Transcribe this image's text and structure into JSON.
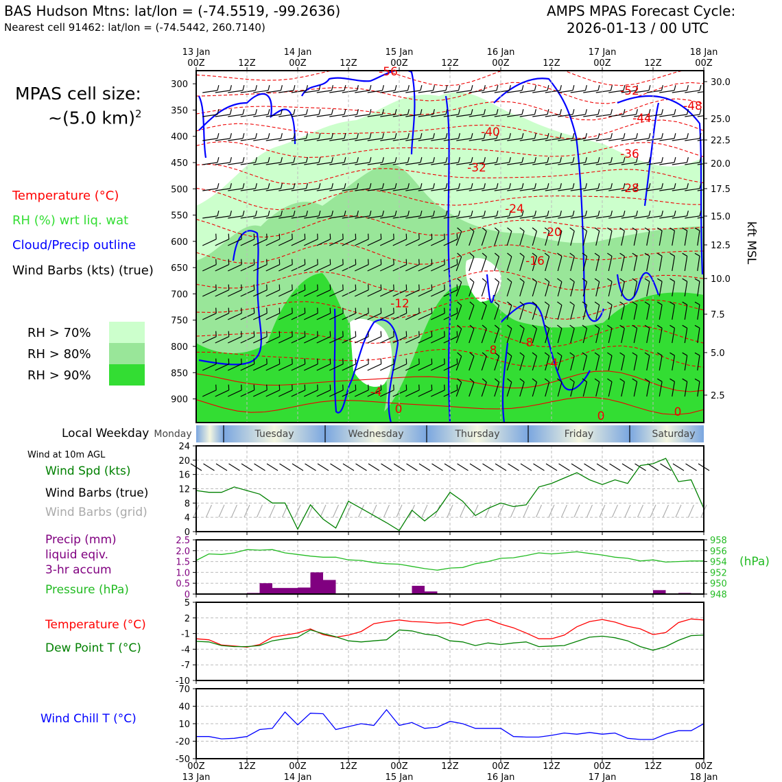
{
  "header": {
    "station_line": "BAS Hudson Mtns: lat/lon = (-74.5519, -99.2636)",
    "cell_line": "Nearest cell 91462: lat/lon = (-74.5442, 260.7140)",
    "model_line": "AMPS MPAS Forecast Cycle:",
    "cycle_line": "2026-01-13 / 00 UTC"
  },
  "cell_size": {
    "line1": "MPAS cell size:",
    "line2": "~(5.0 km)",
    "exponent": "2"
  },
  "legend": {
    "temperature": {
      "label": "Temperature (°C)",
      "color": "#ff0000"
    },
    "rh": {
      "label": "RH (%) wrt liq. wat",
      "color": "#33dd33"
    },
    "cloud": {
      "label": "Cloud/Precip outline",
      "color": "#0000ff"
    },
    "wind": {
      "label": "Wind Barbs (kts) (true)",
      "color": "#000000"
    },
    "rh_levels": [
      {
        "label": "RH > 70%",
        "color": "#ccffcc"
      },
      {
        "label": "RH > 80%",
        "color": "#99e699"
      },
      {
        "label": "RH > 90%",
        "color": "#33dd33"
      }
    ]
  },
  "weekday": {
    "title": "Local Weekday",
    "days": [
      "Monday",
      "Tuesday",
      "Wednesday",
      "Thursday",
      "Friday",
      "Saturday"
    ]
  },
  "time_axis": {
    "ticks": [
      {
        "top": "13 Jan",
        "bottom": "00Z"
      },
      {
        "top": "",
        "bottom": "12Z"
      },
      {
        "top": "14 Jan",
        "bottom": "00Z"
      },
      {
        "top": "",
        "bottom": "12Z"
      },
      {
        "top": "15 Jan",
        "bottom": "00Z"
      },
      {
        "top": "",
        "bottom": "12Z"
      },
      {
        "top": "16 Jan",
        "bottom": "00Z"
      },
      {
        "top": "",
        "bottom": "12Z"
      },
      {
        "top": "17 Jan",
        "bottom": "00Z"
      },
      {
        "top": "",
        "bottom": "12Z"
      },
      {
        "top": "18 Jan",
        "bottom": "00Z"
      }
    ]
  },
  "chart_data": [
    {
      "type": "heatmap",
      "name": "vertical cross-section",
      "x_hours": [
        0,
        120
      ],
      "y_pressure_ticks": [
        300,
        350,
        400,
        450,
        500,
        550,
        600,
        650,
        700,
        750,
        800,
        850,
        900
      ],
      "y_pressure_range": [
        275,
        945
      ],
      "right_axis_kft": [
        30.0,
        25.0,
        22.5,
        20.0,
        17.5,
        15.0,
        12.5,
        10.0,
        7.5,
        5.0,
        2.5
      ],
      "right_axis_label": "kft MSL",
      "temperature_contour_labels": [
        "-56",
        "-52",
        "-48",
        "-44",
        "-40",
        "-36",
        "-32",
        "-28",
        "-24",
        "-20",
        "-16",
        "-12",
        "-8",
        "-8",
        "-4",
        "-4",
        "0",
        "0",
        "0"
      ]
    },
    {
      "type": "line",
      "name": "10m wind",
      "title": "Wind at 10m AGL",
      "labels": {
        "speed": "Wind Spd (kts)",
        "barbs_true": "Wind Barbs (true)",
        "barbs_grid": "Wind Barbs (grid)"
      },
      "ylim": [
        0,
        24
      ],
      "yticks": [
        0,
        4,
        8,
        12,
        16,
        20,
        24
      ],
      "x_hours": [
        0,
        3,
        6,
        9,
        12,
        15,
        18,
        21,
        24,
        27,
        30,
        33,
        36,
        39,
        42,
        45,
        48,
        51,
        54,
        57,
        60,
        63,
        66,
        69,
        72,
        75,
        78,
        81,
        84,
        87,
        90,
        93,
        96,
        99,
        102,
        105,
        108,
        111,
        114,
        117,
        120
      ],
      "speed": [
        11.5,
        11,
        11,
        12.5,
        11.5,
        10.5,
        8,
        8,
        0.7,
        7.5,
        3.5,
        1,
        8.5,
        6.5,
        4.5,
        2.5,
        0.3,
        6,
        3,
        5.8,
        11,
        8.5,
        4.5,
        6.5,
        8,
        7,
        7.5,
        12.5,
        13.5,
        15,
        16.5,
        14.5,
        13.2,
        14.5,
        13.5,
        18.5,
        19,
        20.5,
        14,
        14.5,
        6.5
      ]
    },
    {
      "type": "bar",
      "name": "precip and pressure",
      "labels": {
        "precip": "Precip (mm)",
        "liquid": "liquid eqiv.",
        "accum": "3-hr accum",
        "pressure": "Pressure (hPa)"
      },
      "precip_ylim": [
        0,
        2.5
      ],
      "precip_yticks": [
        "0",
        "0.5",
        "1.0",
        "1.5",
        "2.0",
        "2.5"
      ],
      "pressure_yticks": [
        "948",
        "950",
        "952",
        "954",
        "956",
        "958"
      ],
      "pressure_unit": "(hPa)",
      "pressure_ylim": [
        948,
        958
      ],
      "x_hours": [
        0,
        3,
        6,
        9,
        12,
        15,
        18,
        21,
        24,
        27,
        30,
        33,
        36,
        39,
        42,
        45,
        48,
        51,
        54,
        57,
        60,
        63,
        66,
        69,
        72,
        75,
        78,
        81,
        84,
        87,
        90,
        93,
        96,
        99,
        102,
        105,
        108,
        111,
        114,
        117,
        120
      ],
      "pressure": [
        954.2,
        955.4,
        955.3,
        955.6,
        956.2,
        956.1,
        956.2,
        955.6,
        955.3,
        955,
        954.8,
        954.8,
        954.3,
        954.2,
        953.8,
        953.6,
        953.5,
        953.1,
        952.7,
        952.4,
        952.8,
        952.9,
        953.6,
        954,
        954.6,
        954.7,
        955.1,
        955.6,
        955.4,
        955.6,
        955.8,
        955.5,
        955.2,
        954.8,
        954.6,
        954.1,
        954.3,
        953.9,
        954,
        954.1,
        954.1
      ],
      "precip_bars": [
        {
          "start": 12,
          "end": 15,
          "value": 0.05
        },
        {
          "start": 15,
          "end": 18,
          "value": 0.5
        },
        {
          "start": 18,
          "end": 21,
          "value": 0.28
        },
        {
          "start": 21,
          "end": 24,
          "value": 0.28
        },
        {
          "start": 24,
          "end": 27,
          "value": 0.3
        },
        {
          "start": 27,
          "end": 30,
          "value": 1.0
        },
        {
          "start": 30,
          "end": 33,
          "value": 0.65
        },
        {
          "start": 51,
          "end": 54,
          "value": 0.38
        },
        {
          "start": 54,
          "end": 57,
          "value": 0.12
        },
        {
          "start": 108,
          "end": 111,
          "value": 0.18
        },
        {
          "start": 114,
          "end": 117,
          "value": 0.05
        }
      ]
    },
    {
      "type": "line",
      "name": "temperature",
      "labels": {
        "temp": "Temperature (°C)",
        "dew": "Dew Point T (°C)"
      },
      "ylim": [
        -10,
        5
      ],
      "yticks": [
        "5",
        "2",
        "-1",
        "-4",
        "-7",
        "-10"
      ],
      "x_hours": [
        0,
        3,
        6,
        9,
        12,
        15,
        18,
        21,
        24,
        27,
        30,
        33,
        36,
        39,
        42,
        45,
        48,
        51,
        54,
        57,
        60,
        63,
        66,
        69,
        72,
        75,
        78,
        81,
        84,
        87,
        90,
        93,
        96,
        99,
        102,
        105,
        108,
        111,
        114,
        117,
        120
      ],
      "temperature": [
        -2,
        -2.2,
        -3.2,
        -3.4,
        -3.6,
        -3.1,
        -1.7,
        -1.3,
        -0.9,
        -0.1,
        -1.2,
        -1.7,
        -1.3,
        -0.6,
        0.9,
        1.3,
        1.6,
        1.3,
        1.2,
        1.0,
        1.1,
        0.6,
        1.4,
        1.7,
        0.8,
        0.1,
        -0.9,
        -2.0,
        -2.0,
        -1.3,
        0.3,
        1.3,
        1.7,
        1.2,
        0.4,
        -0.1,
        -1.2,
        -0.8,
        1.1,
        1.8,
        1.6
      ],
      "dewpoint": [
        -2.5,
        -2.6,
        -3.3,
        -3.5,
        -3.5,
        -3.3,
        -2.4,
        -2.0,
        -1.7,
        -0.3,
        -1.0,
        -1.6,
        -2.4,
        -2.6,
        -2.4,
        -2.2,
        -0.3,
        -0.5,
        -1.1,
        -1.4,
        -2.4,
        -2.6,
        -3.3,
        -2.8,
        -3.1,
        -2.8,
        -2.6,
        -3.5,
        -3.4,
        -3.3,
        -2.5,
        -1.7,
        -1.5,
        -1.8,
        -2.4,
        -3.5,
        -4.2,
        -3.5,
        -2.3,
        -1.4,
        -1.3
      ]
    },
    {
      "type": "line",
      "name": "wind chill",
      "labels": {
        "chill": "Wind Chill T (°C)"
      },
      "ylim": [
        -50,
        70
      ],
      "yticks": [
        "70",
        "40",
        "10",
        "-20",
        "-50"
      ],
      "x_hours": [
        0,
        3,
        6,
        9,
        12,
        15,
        18,
        21,
        24,
        27,
        30,
        33,
        36,
        39,
        42,
        45,
        48,
        51,
        54,
        57,
        60,
        63,
        66,
        69,
        72,
        75,
        78,
        81,
        84,
        87,
        90,
        93,
        96,
        99,
        102,
        105,
        108,
        111,
        114,
        117,
        120
      ],
      "wind_chill": [
        -12,
        -12,
        -16,
        -15,
        -12,
        0,
        2,
        30,
        8,
        28,
        27,
        0,
        5,
        10,
        7,
        34,
        7,
        12,
        2,
        4,
        14,
        10,
        2,
        2,
        2,
        -12,
        -13,
        -13,
        -10,
        -6,
        -8,
        -5,
        -8,
        -6,
        -15,
        -17,
        -17,
        -8,
        -2,
        -2,
        10
      ]
    }
  ]
}
